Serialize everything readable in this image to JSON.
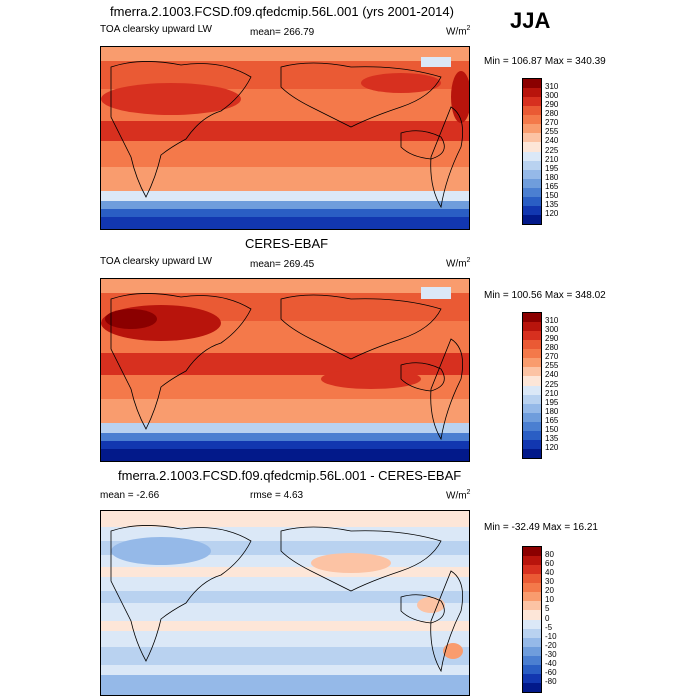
{
  "header": {
    "main_title": "fmerra.2.1003.FCSD.f09.qfedcmip.56L.001 (yrs 2001-2014)",
    "season": "JJA"
  },
  "panels": [
    {
      "title": "",
      "left_label": "TOA clearsky upward LW",
      "mean_text": "mean= 266.79",
      "unit_base": "W/m",
      "unit_exp": "2",
      "minmax": "Min = 106.87 Max = 340.39",
      "levels": [
        "310",
        "300",
        "290",
        "280",
        "270",
        "255",
        "240",
        "225",
        "210",
        "195",
        "180",
        "165",
        "150",
        "135",
        "120"
      ],
      "colors": [
        "#8b0000",
        "#b8140c",
        "#d7301f",
        "#ea5a34",
        "#f4794a",
        "#f99c6e",
        "#fcc3a4",
        "#fde6d8",
        "#dbe8f7",
        "#b9d2f0",
        "#95b9e8",
        "#6f9ddc",
        "#4b7fd1",
        "#2a5ec4",
        "#1237b0",
        "#02198a"
      ]
    },
    {
      "title": "CERES-EBAF",
      "left_label": "TOA clearsky upward LW",
      "mean_text": "mean= 269.45",
      "unit_base": "W/m",
      "unit_exp": "2",
      "minmax": "Min = 100.56 Max = 348.02",
      "levels": [
        "310",
        "300",
        "290",
        "280",
        "270",
        "255",
        "240",
        "225",
        "210",
        "195",
        "180",
        "165",
        "150",
        "135",
        "120"
      ],
      "colors": [
        "#8b0000",
        "#b8140c",
        "#d7301f",
        "#ea5a34",
        "#f4794a",
        "#f99c6e",
        "#fcc3a4",
        "#fde6d8",
        "#dbe8f7",
        "#b9d2f0",
        "#95b9e8",
        "#6f9ddc",
        "#4b7fd1",
        "#2a5ec4",
        "#1237b0",
        "#02198a"
      ]
    },
    {
      "title": "fmerra.2.1003.FCSD.f09.qfedcmip.56L.001 - CERES-EBAF",
      "left_label": "mean =  -2.66",
      "mean_text": "rmse =  4.63",
      "unit_base": "W/m",
      "unit_exp": "2",
      "minmax": "Min = -32.49 Max =  16.21",
      "levels": [
        "80",
        "60",
        "40",
        "30",
        "20",
        "10",
        "5",
        "0",
        "-5",
        "-10",
        "-20",
        "-30",
        "-40",
        "-60",
        "-80"
      ],
      "colors": [
        "#8b0000",
        "#b8140c",
        "#d7301f",
        "#ea5a34",
        "#f4794a",
        "#f99c6e",
        "#fcc3a4",
        "#fde6d8",
        "#dbe8f7",
        "#b9d2f0",
        "#95b9e8",
        "#6f9ddc",
        "#4b7fd1",
        "#2a5ec4",
        "#1237b0",
        "#02198a"
      ]
    }
  ]
}
